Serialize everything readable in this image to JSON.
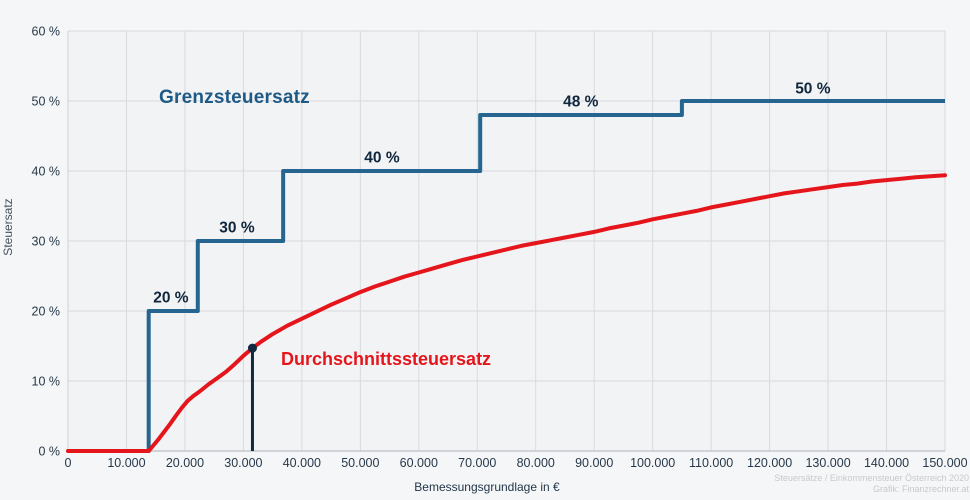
{
  "chart_data": {
    "type": "line",
    "title": "",
    "xlabel": "Bemessungsgrundlage in €",
    "ylabel": "Steuersatz",
    "xlim": [
      0,
      150000
    ],
    "ylim": [
      0,
      60
    ],
    "grid": true,
    "legend_position": "inline-annotations",
    "x_ticks": [
      {
        "value": 0,
        "label": "0"
      },
      {
        "value": 10000,
        "label": "10.000"
      },
      {
        "value": 20000,
        "label": "20.000"
      },
      {
        "value": 30000,
        "label": "30.000"
      },
      {
        "value": 40000,
        "label": "40.000"
      },
      {
        "value": 50000,
        "label": "50.000"
      },
      {
        "value": 60000,
        "label": "60.000"
      },
      {
        "value": 70000,
        "label": "70.000"
      },
      {
        "value": 80000,
        "label": "80.000"
      },
      {
        "value": 90000,
        "label": "90.000"
      },
      {
        "value": 100000,
        "label": "100.000"
      },
      {
        "value": 110000,
        "label": "110.000"
      },
      {
        "value": 120000,
        "label": "120.000"
      },
      {
        "value": 130000,
        "label": "130.000"
      },
      {
        "value": 140000,
        "label": "140.000"
      },
      {
        "value": 150000,
        "label": "150.000"
      }
    ],
    "y_ticks": [
      {
        "value": 0,
        "label": "0 %"
      },
      {
        "value": 10,
        "label": "10 %"
      },
      {
        "value": 20,
        "label": "20 %"
      },
      {
        "value": 30,
        "label": "30 %"
      },
      {
        "value": 40,
        "label": "40 %"
      },
      {
        "value": 50,
        "label": "50 %"
      },
      {
        "value": 60,
        "label": "60 %"
      }
    ],
    "series": [
      {
        "name": "Grenzsteuersatz",
        "type": "step",
        "color": "#26658f",
        "segments": [
          {
            "rate": 0,
            "from": 0,
            "to": 13800
          },
          {
            "rate": 20,
            "from": 13800,
            "to": 22200
          },
          {
            "rate": 30,
            "from": 22200,
            "to": 36800
          },
          {
            "rate": 40,
            "from": 36800,
            "to": 70500
          },
          {
            "rate": 48,
            "from": 70500,
            "to": 105000
          },
          {
            "rate": 50,
            "from": 105000,
            "to": 150000
          }
        ],
        "step_labels": [
          {
            "text": "20 %",
            "x": 17600,
            "y": 21.9
          },
          {
            "text": "30 %",
            "x": 28900,
            "y": 31.9
          },
          {
            "text": "40 %",
            "x": 53700,
            "y": 41.9
          },
          {
            "text": "48 %",
            "x": 87700,
            "y": 49.9
          },
          {
            "text": "50 %",
            "x": 127400,
            "y": 51.8
          }
        ]
      },
      {
        "name": "Durchschnittssteuersatz",
        "type": "line",
        "color": "#e5151c",
        "points": [
          [
            0,
            0
          ],
          [
            13000,
            0
          ],
          [
            13800,
            0
          ],
          [
            14500,
            0.7
          ],
          [
            15500,
            1.7
          ],
          [
            16500,
            2.8
          ],
          [
            17500,
            3.9
          ],
          [
            18500,
            5.1
          ],
          [
            19500,
            6.2
          ],
          [
            20500,
            7.2
          ],
          [
            21500,
            7.9
          ],
          [
            22500,
            8.5
          ],
          [
            24000,
            9.5
          ],
          [
            25500,
            10.4
          ],
          [
            27000,
            11.3
          ],
          [
            28500,
            12.4
          ],
          [
            30000,
            13.6
          ],
          [
            31550,
            14.7
          ],
          [
            33000,
            15.6
          ],
          [
            35000,
            16.7
          ],
          [
            37500,
            17.9
          ],
          [
            40000,
            18.9
          ],
          [
            42500,
            19.9
          ],
          [
            45000,
            20.9
          ],
          [
            47500,
            21.8
          ],
          [
            50000,
            22.7
          ],
          [
            52500,
            23.5
          ],
          [
            55000,
            24.2
          ],
          [
            57500,
            24.9
          ],
          [
            60000,
            25.5
          ],
          [
            62500,
            26.1
          ],
          [
            65000,
            26.7
          ],
          [
            67500,
            27.3
          ],
          [
            70000,
            27.8
          ],
          [
            72500,
            28.3
          ],
          [
            75000,
            28.8
          ],
          [
            77500,
            29.3
          ],
          [
            80000,
            29.7
          ],
          [
            82500,
            30.1
          ],
          [
            85000,
            30.5
          ],
          [
            87500,
            30.9
          ],
          [
            90000,
            31.3
          ],
          [
            92500,
            31.8
          ],
          [
            95000,
            32.2
          ],
          [
            97500,
            32.6
          ],
          [
            100000,
            33.1
          ],
          [
            102500,
            33.5
          ],
          [
            105000,
            33.9
          ],
          [
            107500,
            34.3
          ],
          [
            110000,
            34.8
          ],
          [
            112500,
            35.2
          ],
          [
            115000,
            35.6
          ],
          [
            117500,
            36.0
          ],
          [
            120000,
            36.4
          ],
          [
            122500,
            36.8
          ],
          [
            125000,
            37.1
          ],
          [
            127500,
            37.4
          ],
          [
            130000,
            37.7
          ],
          [
            132500,
            38.0
          ],
          [
            135000,
            38.2
          ],
          [
            137500,
            38.5
          ],
          [
            140000,
            38.7
          ],
          [
            142500,
            38.9
          ],
          [
            145000,
            39.1
          ],
          [
            147500,
            39.25
          ],
          [
            150000,
            39.4
          ]
        ]
      }
    ],
    "marker": {
      "x": 31550,
      "y": 14.7
    },
    "colors": {
      "marginal_line": "#26658f",
      "average_line": "#e5151c",
      "marker": "#112a42",
      "grid": "#d9dade",
      "axis": "#c3c7cd",
      "tick_text": "#26384a",
      "step_label_text": "#10263c",
      "plot_background": "#f2f3f5"
    }
  },
  "footer": {
    "source_line1": "Steuersätze / Einkommensteuer Österreich 2020",
    "source_line2": "Grafik: Finanzrechner.at"
  }
}
